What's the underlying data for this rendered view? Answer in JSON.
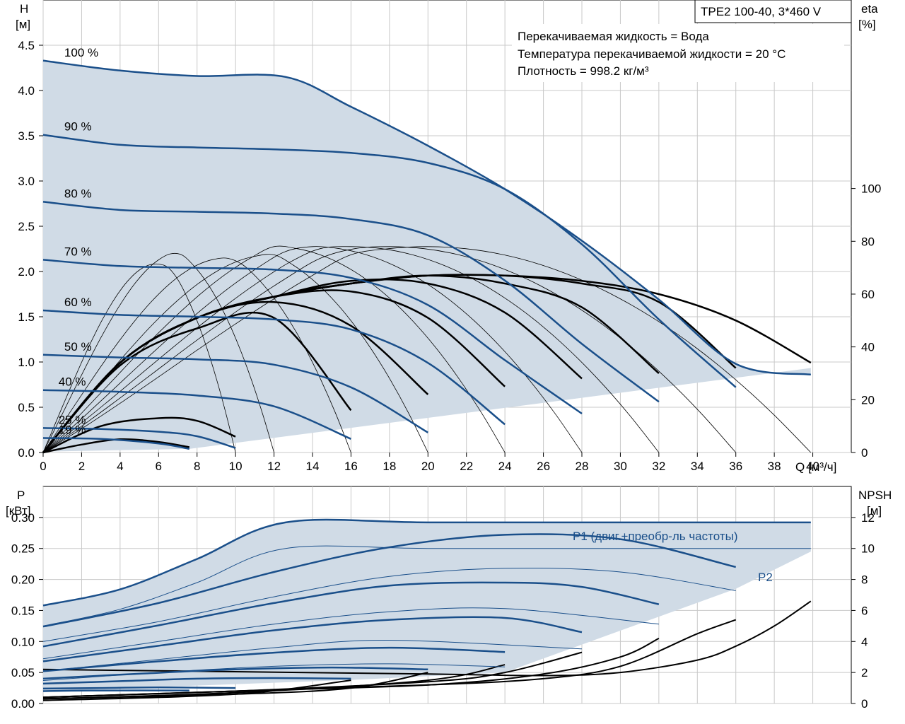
{
  "title_box": "TPE2 100-40, 3*460 V",
  "info_lines": [
    "Перекачиваемая жидкость = Вода",
    "Температура перекачиваемой жидкости = 20 °C",
    "Плотность = 998.2 кг/м³"
  ],
  "colors": {
    "curve_blue": "#1a4f8a",
    "fill": "#d0dbe6",
    "grid": "#c8c8c8",
    "efficiency_black": "#000000"
  },
  "chart_data": [
    {
      "type": "line",
      "name": "head-curves",
      "ylabel_left": [
        "H",
        "[м]"
      ],
      "ylabel_right": [
        "eta",
        "[%]"
      ],
      "xlabel": "Q [м³/ч]",
      "xlim": [
        0,
        42
      ],
      "ylim": [
        0,
        5
      ],
      "eta_ylim": [
        0,
        171.4
      ],
      "x_ticks": [
        0,
        2,
        4,
        6,
        8,
        10,
        12,
        14,
        16,
        18,
        20,
        22,
        24,
        26,
        28,
        30,
        32,
        34,
        36,
        38,
        40
      ],
      "y_ticks": [
        "0.0",
        "0.5",
        "1.0",
        "1.5",
        "2.0",
        "2.5",
        "3.0",
        "3.5",
        "4.0",
        "4.5"
      ],
      "eta_ticks": [
        0,
        20,
        40,
        60,
        80,
        100
      ],
      "grid": true,
      "series": [
        {
          "name": "100 %",
          "x": [
            0,
            4,
            8,
            12.6,
            16,
            20,
            24,
            28,
            32,
            36,
            39.9
          ],
          "y": [
            4.33,
            4.22,
            4.16,
            4.15,
            3.82,
            3.39,
            2.91,
            2.34,
            1.69,
            0.98,
            0.86
          ]
        },
        {
          "name": "90 %",
          "x": [
            0,
            4,
            8,
            12,
            16,
            20,
            24,
            28,
            32,
            36
          ],
          "y": [
            3.51,
            3.4,
            3.37,
            3.35,
            3.31,
            3.2,
            2.91,
            2.3,
            1.47,
            0.72
          ]
        },
        {
          "name": "80 %",
          "x": [
            0,
            4,
            8,
            12,
            16,
            20,
            24,
            28,
            32
          ],
          "y": [
            2.77,
            2.68,
            2.66,
            2.64,
            2.58,
            2.4,
            1.9,
            1.2,
            0.56
          ]
        },
        {
          "name": "70 %",
          "x": [
            0,
            4,
            8,
            12,
            16,
            20,
            24,
            28
          ],
          "y": [
            2.13,
            2.06,
            2.04,
            2.02,
            1.93,
            1.63,
            1.02,
            0.43
          ]
        },
        {
          "name": "60 %",
          "x": [
            0,
            4,
            8,
            12,
            16,
            20,
            24
          ],
          "y": [
            1.57,
            1.52,
            1.5,
            1.47,
            1.36,
            0.99,
            0.31
          ]
        },
        {
          "name": "50 %",
          "x": [
            0,
            4,
            8,
            12,
            16,
            20
          ],
          "y": [
            1.08,
            1.05,
            1.03,
            0.97,
            0.72,
            0.22
          ]
        },
        {
          "name": "40 %",
          "x": [
            0,
            4,
            8,
            12,
            16
          ],
          "y": [
            0.69,
            0.67,
            0.63,
            0.51,
            0.15
          ]
        },
        {
          "name": "25 %",
          "x": [
            0,
            3,
            6,
            8,
            10
          ],
          "y": [
            0.27,
            0.26,
            0.23,
            0.18,
            0.05
          ]
        },
        {
          "name": "19 %",
          "x": [
            0,
            3,
            6,
            7.6
          ],
          "y": [
            0.16,
            0.15,
            0.1,
            0.04
          ]
        }
      ],
      "efficiency_curves": [
        {
          "x": [
            0,
            4,
            8,
            12.6,
            16,
            20,
            24,
            28,
            32,
            36,
            39.9
          ],
          "eta": [
            0,
            34,
            51,
            60,
            64,
            67,
            67,
            65,
            60,
            50,
            34
          ]
        },
        {
          "x": [
            0,
            4,
            8,
            12,
            16,
            20,
            24,
            28,
            32,
            36
          ],
          "eta": [
            0,
            34,
            51,
            59,
            64,
            67,
            67,
            64,
            57,
            32
          ]
        },
        {
          "x": [
            0,
            4,
            8,
            12,
            16,
            20,
            24,
            28,
            32
          ],
          "eta": [
            0,
            34,
            51,
            59,
            64,
            67,
            64,
            55,
            30
          ]
        },
        {
          "x": [
            0,
            4,
            8,
            12,
            16,
            20,
            24,
            28
          ],
          "eta": [
            0,
            34,
            51,
            59,
            65,
            64,
            53,
            28
          ]
        },
        {
          "x": [
            0,
            4,
            8,
            12,
            16,
            20,
            24
          ],
          "eta": [
            0,
            34,
            51,
            59,
            61,
            51,
            25
          ]
        },
        {
          "x": [
            0,
            4,
            8,
            12,
            16,
            20
          ],
          "eta": [
            0,
            34,
            51,
            57,
            48,
            22
          ]
        },
        {
          "x": [
            0,
            4,
            8,
            12,
            16
          ],
          "eta": [
            0,
            33,
            47,
            51,
            16
          ]
        },
        {
          "x": [
            0,
            3,
            6,
            8,
            10
          ],
          "eta": [
            0,
            10,
            13,
            12,
            6
          ]
        },
        {
          "x": [
            0,
            2,
            4,
            6,
            7.6
          ],
          "eta": [
            0,
            3,
            5,
            4,
            2
          ]
        }
      ]
    },
    {
      "type": "line",
      "name": "power-npsh-curves",
      "ylabel_left": [
        "P",
        "[кВт]"
      ],
      "ylabel_right": [
        "NPSH",
        "[м]"
      ],
      "xlim": [
        0,
        42
      ],
      "ylim": [
        0,
        0.35
      ],
      "npsh_ylim": [
        0,
        14
      ],
      "y_ticks": [
        "0.00",
        "0.05",
        "0.10",
        "0.15",
        "0.20",
        "0.25",
        "0.30"
      ],
      "npsh_ticks": [
        0,
        2,
        4,
        6,
        8,
        10,
        12
      ],
      "grid": true,
      "p1_label": "P1 (двиг.+преобр-ль частоты)",
      "p2_label": "P2",
      "p1_series": [
        {
          "name": "100 %",
          "x": [
            0,
            4,
            8,
            12.6,
            20,
            30,
            39.9
          ],
          "y": [
            0.158,
            0.184,
            0.233,
            0.292,
            0.292,
            0.292,
            0.292
          ]
        },
        {
          "name": "90 %",
          "x": [
            0,
            6,
            12,
            18,
            24,
            30,
            36
          ],
          "y": [
            0.124,
            0.162,
            0.212,
            0.252,
            0.272,
            0.265,
            0.22
          ]
        },
        {
          "name": "80 %",
          "x": [
            0,
            6,
            12,
            18,
            24,
            28,
            32
          ],
          "y": [
            0.092,
            0.126,
            0.162,
            0.19,
            0.195,
            0.188,
            0.16
          ]
        },
        {
          "name": "70 %",
          "x": [
            0,
            6,
            12,
            18,
            24,
            28
          ],
          "y": [
            0.068,
            0.093,
            0.118,
            0.135,
            0.138,
            0.115
          ]
        },
        {
          "name": "60 %",
          "x": [
            0,
            6,
            12,
            18,
            24
          ],
          "y": [
            0.052,
            0.068,
            0.082,
            0.09,
            0.083
          ]
        },
        {
          "name": "50 %",
          "x": [
            0,
            5,
            10,
            15,
            20
          ],
          "y": [
            0.04,
            0.048,
            0.055,
            0.058,
            0.055
          ]
        },
        {
          "name": "40 %",
          "x": [
            0,
            4,
            8,
            12,
            16
          ],
          "y": [
            0.032,
            0.036,
            0.04,
            0.041,
            0.04
          ]
        },
        {
          "name": "25 %",
          "x": [
            0,
            3,
            6,
            10
          ],
          "y": [
            0.024,
            0.025,
            0.026,
            0.025
          ]
        },
        {
          "name": "19 %",
          "x": [
            0,
            3,
            7.6
          ],
          "y": [
            0.02,
            0.021,
            0.021
          ]
        }
      ],
      "p2_series": [
        {
          "name": "100 %",
          "x": [
            0,
            4,
            8,
            12.6,
            20,
            30,
            39.9
          ],
          "y": [
            0.125,
            0.152,
            0.195,
            0.25,
            0.25,
            0.25,
            0.25
          ]
        },
        {
          "name": "90 %",
          "x": [
            0,
            6,
            12,
            18,
            24,
            30,
            36
          ],
          "y": [
            0.1,
            0.132,
            0.172,
            0.205,
            0.218,
            0.212,
            0.182
          ]
        },
        {
          "name": "80 %",
          "x": [
            0,
            6,
            12,
            18,
            24,
            32
          ],
          "y": [
            0.072,
            0.1,
            0.128,
            0.148,
            0.153,
            0.128
          ]
        },
        {
          "name": "70 %",
          "x": [
            0,
            6,
            12,
            18,
            28
          ],
          "y": [
            0.052,
            0.071,
            0.09,
            0.102,
            0.088
          ]
        },
        {
          "name": "60 %",
          "x": [
            0,
            6,
            12,
            18,
            24
          ],
          "y": [
            0.037,
            0.05,
            0.06,
            0.064,
            0.059
          ]
        }
      ],
      "npsh_curves": [
        {
          "x": [
            0,
            10,
            20,
            26,
            30,
            34,
            36
          ],
          "npsh": [
            0.4,
            0.8,
            1.2,
            1.6,
            2.4,
            4.5,
            5.4
          ]
        },
        {
          "x": [
            0,
            10,
            20,
            26,
            30,
            32
          ],
          "npsh": [
            0.4,
            0.8,
            1.2,
            1.9,
            3.0,
            4.2
          ]
        },
        {
          "x": [
            0,
            10,
            20,
            24,
            28
          ],
          "npsh": [
            0.4,
            0.8,
            1.4,
            2.0,
            3.3
          ]
        },
        {
          "x": [
            0,
            10,
            20,
            24
          ],
          "npsh": [
            0.3,
            0.7,
            1.5,
            2.5
          ]
        },
        {
          "x": [
            0,
            10,
            16,
            20
          ],
          "npsh": [
            0.3,
            0.6,
            1.0,
            2.0
          ]
        },
        {
          "x": [
            0,
            10,
            16
          ],
          "npsh": [
            0.2,
            0.6,
            1.5
          ]
        },
        {
          "x": [
            0,
            20,
            26,
            30,
            34,
            36,
            38,
            39.9
          ],
          "npsh": [
            2.2,
            1.9,
            1.8,
            2.0,
            2.8,
            3.7,
            5.0,
            6.6
          ]
        }
      ]
    }
  ]
}
